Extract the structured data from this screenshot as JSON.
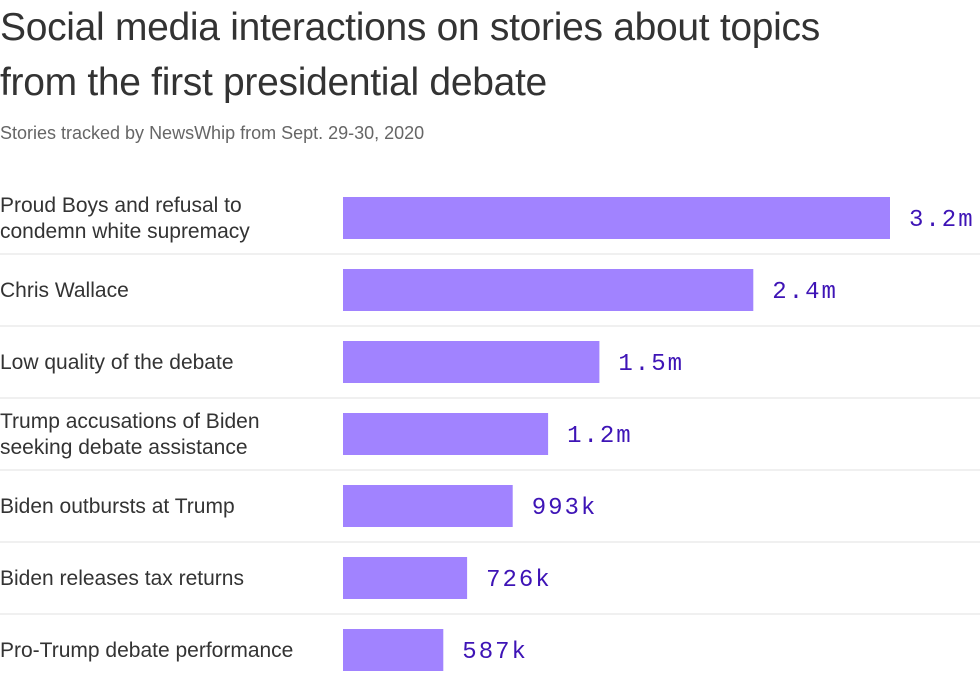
{
  "title": "Social media interactions on stories about topics from the first presidential debate",
  "subtitle": "Stories tracked by NewsWhip from Sept. 29-30, 2020",
  "colors": {
    "bar": "#a183ff",
    "value_text": "#3e14b6",
    "divider": "#e0e0e0",
    "label_text": "#333333"
  },
  "chart_data": {
    "type": "bar",
    "orientation": "horizontal",
    "categories": [
      [
        "Proud Boys and refusal to",
        "condemn white supremacy"
      ],
      [
        "Chris Wallace"
      ],
      [
        "Low quality of the debate"
      ],
      [
        "Trump accusations of Biden",
        "seeking debate assistance"
      ],
      [
        "Biden outbursts at Trump"
      ],
      [
        "Biden releases tax returns"
      ],
      [
        "Pro-Trump debate performance"
      ]
    ],
    "values": [
      3200000,
      2400000,
      1500000,
      1200000,
      993000,
      726000,
      587000
    ],
    "value_labels": [
      "3.2m",
      "2.4m",
      "1.5m",
      "1.2m",
      "993k",
      "726k",
      "587k"
    ],
    "xlim": [
      0,
      3200000
    ],
    "grid": false,
    "legend": "none"
  }
}
